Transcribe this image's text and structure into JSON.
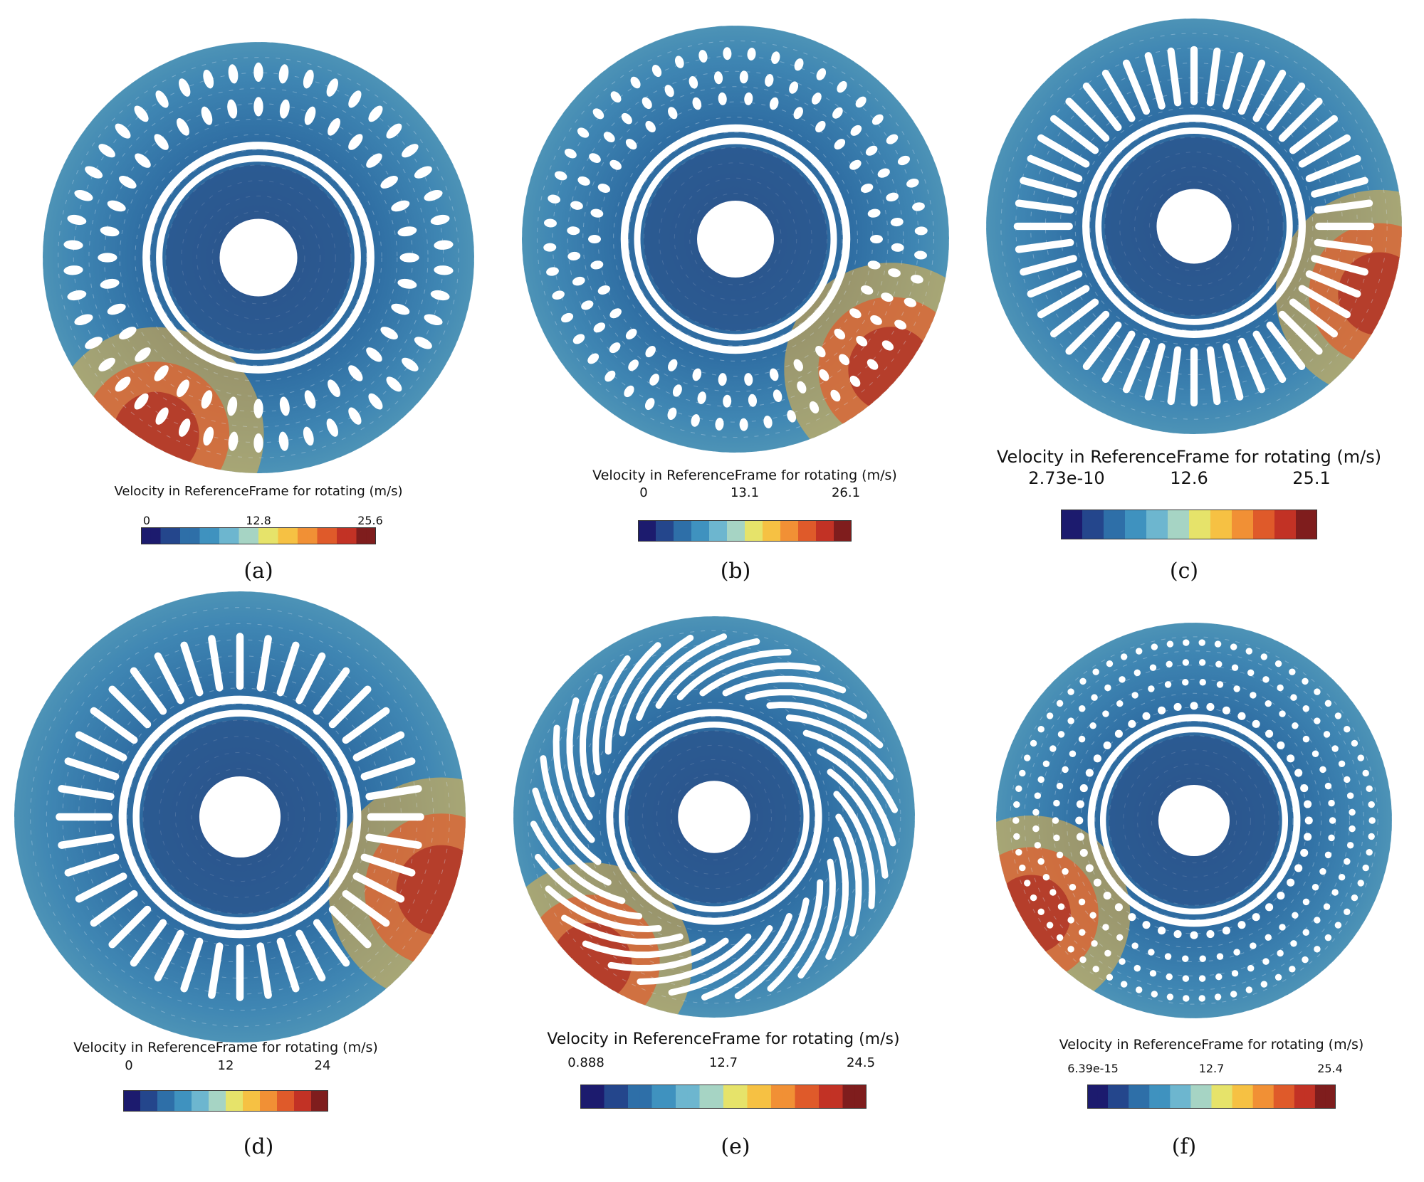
{
  "panels": [
    {
      "id": "a",
      "caption": "(a)",
      "legend_title": "Velocity in ReferenceFrame for rotating (m/s)",
      "ticks": [
        "0",
        "12.8",
        "25.6"
      ],
      "rotor_type": "teardrop-slots",
      "hot_sector_deg": 120
    },
    {
      "id": "b",
      "caption": "(b)",
      "legend_title": "Velocity in ReferenceFrame for rotating (m/s)",
      "ticks": [
        "0",
        "13.1",
        "26.1"
      ],
      "rotor_type": "dotted-slots",
      "hot_sector_deg": 40
    },
    {
      "id": "c",
      "caption": "(c)",
      "legend_title": "Velocity in ReferenceFrame for rotating (m/s)",
      "ticks": [
        "2.73e-10",
        "12.6",
        "25.1"
      ],
      "rotor_type": "radial-bars",
      "hot_sector_deg": 20
    },
    {
      "id": "d",
      "caption": "(d)",
      "legend_title": "Velocity in ReferenceFrame for rotating (m/s)",
      "ticks": [
        "0",
        "12",
        "24"
      ],
      "rotor_type": "u-slots",
      "hot_sector_deg": 20
    },
    {
      "id": "e",
      "caption": "(e)",
      "legend_title": "Velocity in ReferenceFrame for rotating (m/s)",
      "ticks": [
        "0.888",
        "12.7",
        "24.5"
      ],
      "rotor_type": "curved-blades",
      "hot_sector_deg": 130
    },
    {
      "id": "f",
      "caption": "(f)",
      "legend_title": "Velocity in ReferenceFrame for rotating (m/s)",
      "ticks": [
        "6.39e-15",
        "12.7",
        "25.4"
      ],
      "rotor_type": "hole-array",
      "hot_sector_deg": 150
    }
  ],
  "colormap": [
    "#1c1b6e",
    "#24468c",
    "#2e6fa8",
    "#3f92bf",
    "#6db6cf",
    "#a6d4c4",
    "#e6e36a",
    "#f6c143",
    "#f19035",
    "#df5a2a",
    "#c23225",
    "#7f1d1d"
  ]
}
